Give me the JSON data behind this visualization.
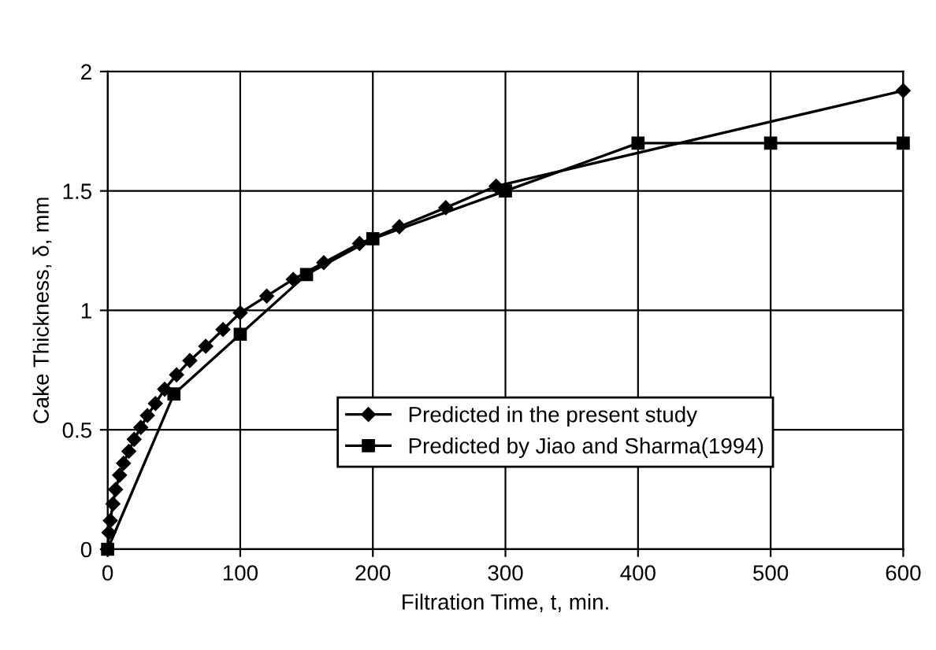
{
  "chart_data": {
    "type": "line",
    "xlabel": "Filtration Time, t, min.",
    "ylabel": "Cake Thickness, δ, mm",
    "xlim": [
      0,
      600
    ],
    "xticks": [
      0,
      100,
      200,
      300,
      400,
      500,
      600
    ],
    "ylim": [
      0,
      2
    ],
    "yticks": [
      0,
      0.5,
      1,
      1.5,
      2
    ],
    "grid": true,
    "legend": "lower right",
    "series": [
      {
        "name": "Predicted in the present study",
        "color": "#000000",
        "marker": "diamond",
        "x": [
          0,
          1,
          2,
          4,
          6,
          9,
          12,
          16,
          20,
          25,
          30,
          36,
          43,
          52,
          62,
          74,
          87,
          100,
          120,
          140,
          163,
          190,
          220,
          255,
          293,
          600
        ],
        "values": [
          0,
          0.07,
          0.12,
          0.19,
          0.25,
          0.31,
          0.36,
          0.41,
          0.46,
          0.51,
          0.56,
          0.61,
          0.67,
          0.73,
          0.79,
          0.85,
          0.92,
          0.99,
          1.06,
          1.13,
          1.2,
          1.28,
          1.35,
          1.43,
          1.52,
          1.92
        ]
      },
      {
        "name": "Predicted by Jiao and Sharma(1994)",
        "color": "#000000",
        "marker": "square",
        "x": [
          0,
          50,
          100,
          150,
          200,
          300,
          400,
          500,
          600
        ],
        "values": [
          0,
          0.65,
          0.9,
          1.15,
          1.3,
          1.5,
          1.7,
          1.7,
          1.7
        ]
      }
    ]
  }
}
